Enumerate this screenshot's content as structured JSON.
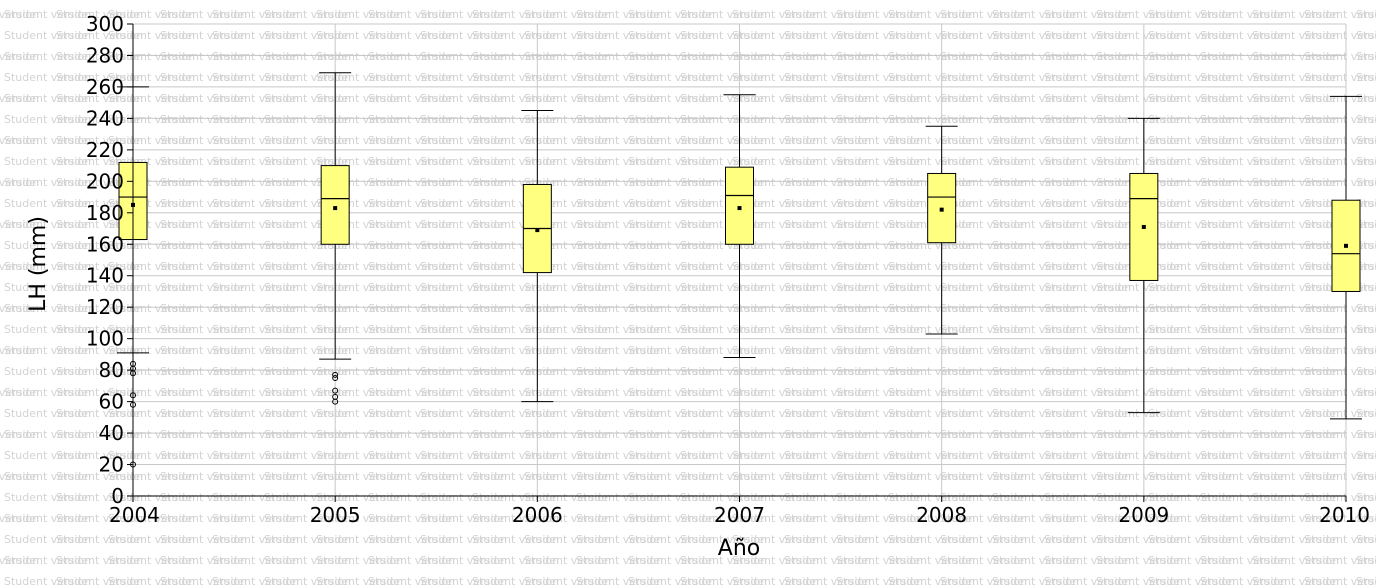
{
  "watermark": {
    "text": "Student version",
    "color": "#d3d3d3"
  },
  "chart_data": {
    "type": "boxplot",
    "xlabel": "Año",
    "ylabel": "LH (mm)",
    "ylim": [
      0,
      300
    ],
    "yticks": [
      0,
      20,
      40,
      60,
      80,
      100,
      120,
      140,
      160,
      180,
      200,
      220,
      240,
      260,
      280,
      300
    ],
    "grid": true,
    "box_color": "#ffff80",
    "categories": [
      "2004",
      "2005",
      "2006",
      "2007",
      "2008",
      "2009",
      "2010"
    ],
    "boxes": [
      {
        "year": "2004",
        "whisker_low": 91,
        "q1": 163,
        "median": 190,
        "q3": 212,
        "whisker_high": 260,
        "mean": 185,
        "outliers": [
          84,
          81,
          78,
          64,
          58,
          20
        ]
      },
      {
        "year": "2005",
        "whisker_low": 87,
        "q1": 160,
        "median": 189,
        "q3": 210,
        "whisker_high": 269,
        "mean": 183,
        "outliers": [
          77,
          75,
          67,
          63,
          60
        ]
      },
      {
        "year": "2006",
        "whisker_low": 60,
        "q1": 142,
        "median": 170,
        "q3": 198,
        "whisker_high": 245,
        "mean": 169,
        "outliers": []
      },
      {
        "year": "2007",
        "whisker_low": 88,
        "q1": 160,
        "median": 191,
        "q3": 209,
        "whisker_high": 255,
        "mean": 183,
        "outliers": []
      },
      {
        "year": "2008",
        "whisker_low": 103,
        "q1": 161,
        "median": 190,
        "q3": 205,
        "whisker_high": 235,
        "mean": 182,
        "outliers": []
      },
      {
        "year": "2009",
        "whisker_low": 53,
        "q1": 137,
        "median": 189,
        "q3": 205,
        "whisker_high": 240,
        "mean": 171,
        "outliers": []
      },
      {
        "year": "2010",
        "whisker_low": 49,
        "q1": 130,
        "median": 154,
        "q3": 188,
        "whisker_high": 254,
        "mean": 159,
        "outliers": []
      }
    ]
  }
}
